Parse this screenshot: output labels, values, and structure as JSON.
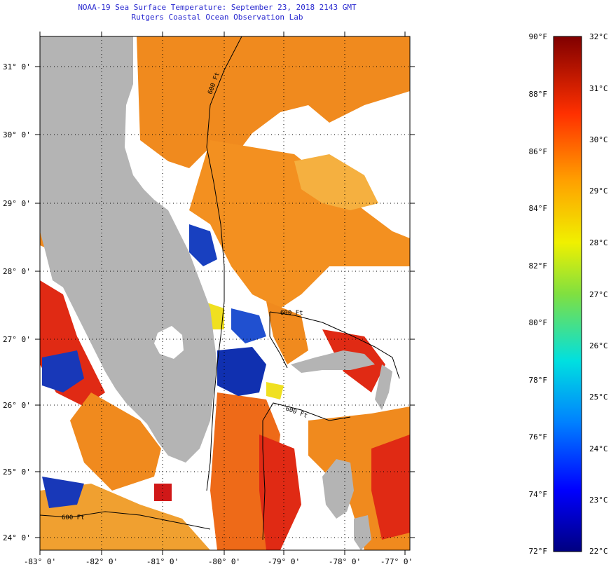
{
  "title_line1": "NOAA-19 Sea Surface Temperature:  September 23, 2018 2143 GMT",
  "title_line2": "Rutgers Coastal Ocean Observation Lab",
  "lat_labels": [
    "31° 0'",
    "30° 0'",
    "29° 0'",
    "28° 0'",
    "27° 0'",
    "26° 0'",
    "25° 0'",
    "24° 0'"
  ],
  "lon_labels": [
    "-83° 0'",
    "-82° 0'",
    "-81° 0'",
    "-80° 0'",
    "-79° 0'",
    "-78° 0'",
    "-77° 0'"
  ],
  "colorbar_f": [
    "90°F",
    "88°F",
    "86°F",
    "84°F",
    "82°F",
    "80°F",
    "78°F",
    "76°F",
    "74°F",
    "72°F"
  ],
  "colorbar_c": [
    "32°C",
    "31°C",
    "30°C",
    "29°C",
    "28°C",
    "27°C",
    "26°C",
    "25°C",
    "24°C",
    "23°C",
    "22°C"
  ],
  "contour_label": "600 Ft",
  "colors": {
    "land": "#b4b4b4",
    "title": "#2a2ad0",
    "contour": "#000000",
    "sst_warm": "#f08a1e",
    "sst_hot": "#e02a14",
    "sst_cold": "#1030b0",
    "sst_mid": "#f0e020"
  }
}
